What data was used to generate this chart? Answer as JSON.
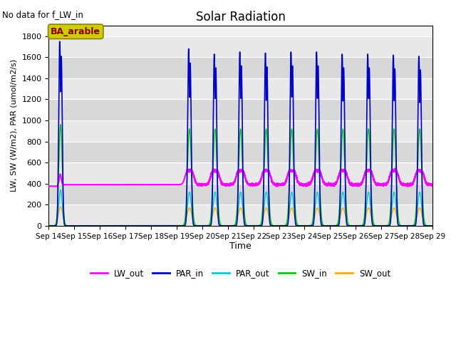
{
  "title": "Solar Radiation",
  "subtitle": "No data for f_LW_in",
  "xlabel": "Time",
  "ylabel": "LW, SW (W/m2), PAR (umol/m2/s)",
  "ylim": [
    0,
    1900
  ],
  "xlim_days": [
    14,
    29
  ],
  "legend_labels": [
    "LW_out",
    "PAR_in",
    "PAR_out",
    "SW_in",
    "SW_out"
  ],
  "legend_colors": [
    "#ff00ff",
    "#0000cc",
    "#00cccc",
    "#00cc00",
    "#ffaa00"
  ],
  "annotation_text": "BA_arable",
  "annotation_box_color": "#cccc00",
  "annotation_text_color": "#8b0000",
  "background_color": "#e8e8e8",
  "lw_out_base": 390,
  "par_in_peak_first": 1750,
  "par_in_peak_rest": 1650,
  "sw_in_peak": 920,
  "sw_out_peak": 170,
  "par_out_peak": 320,
  "active_days": [
    19,
    20,
    21,
    22,
    23,
    24,
    25,
    26,
    27,
    28
  ]
}
